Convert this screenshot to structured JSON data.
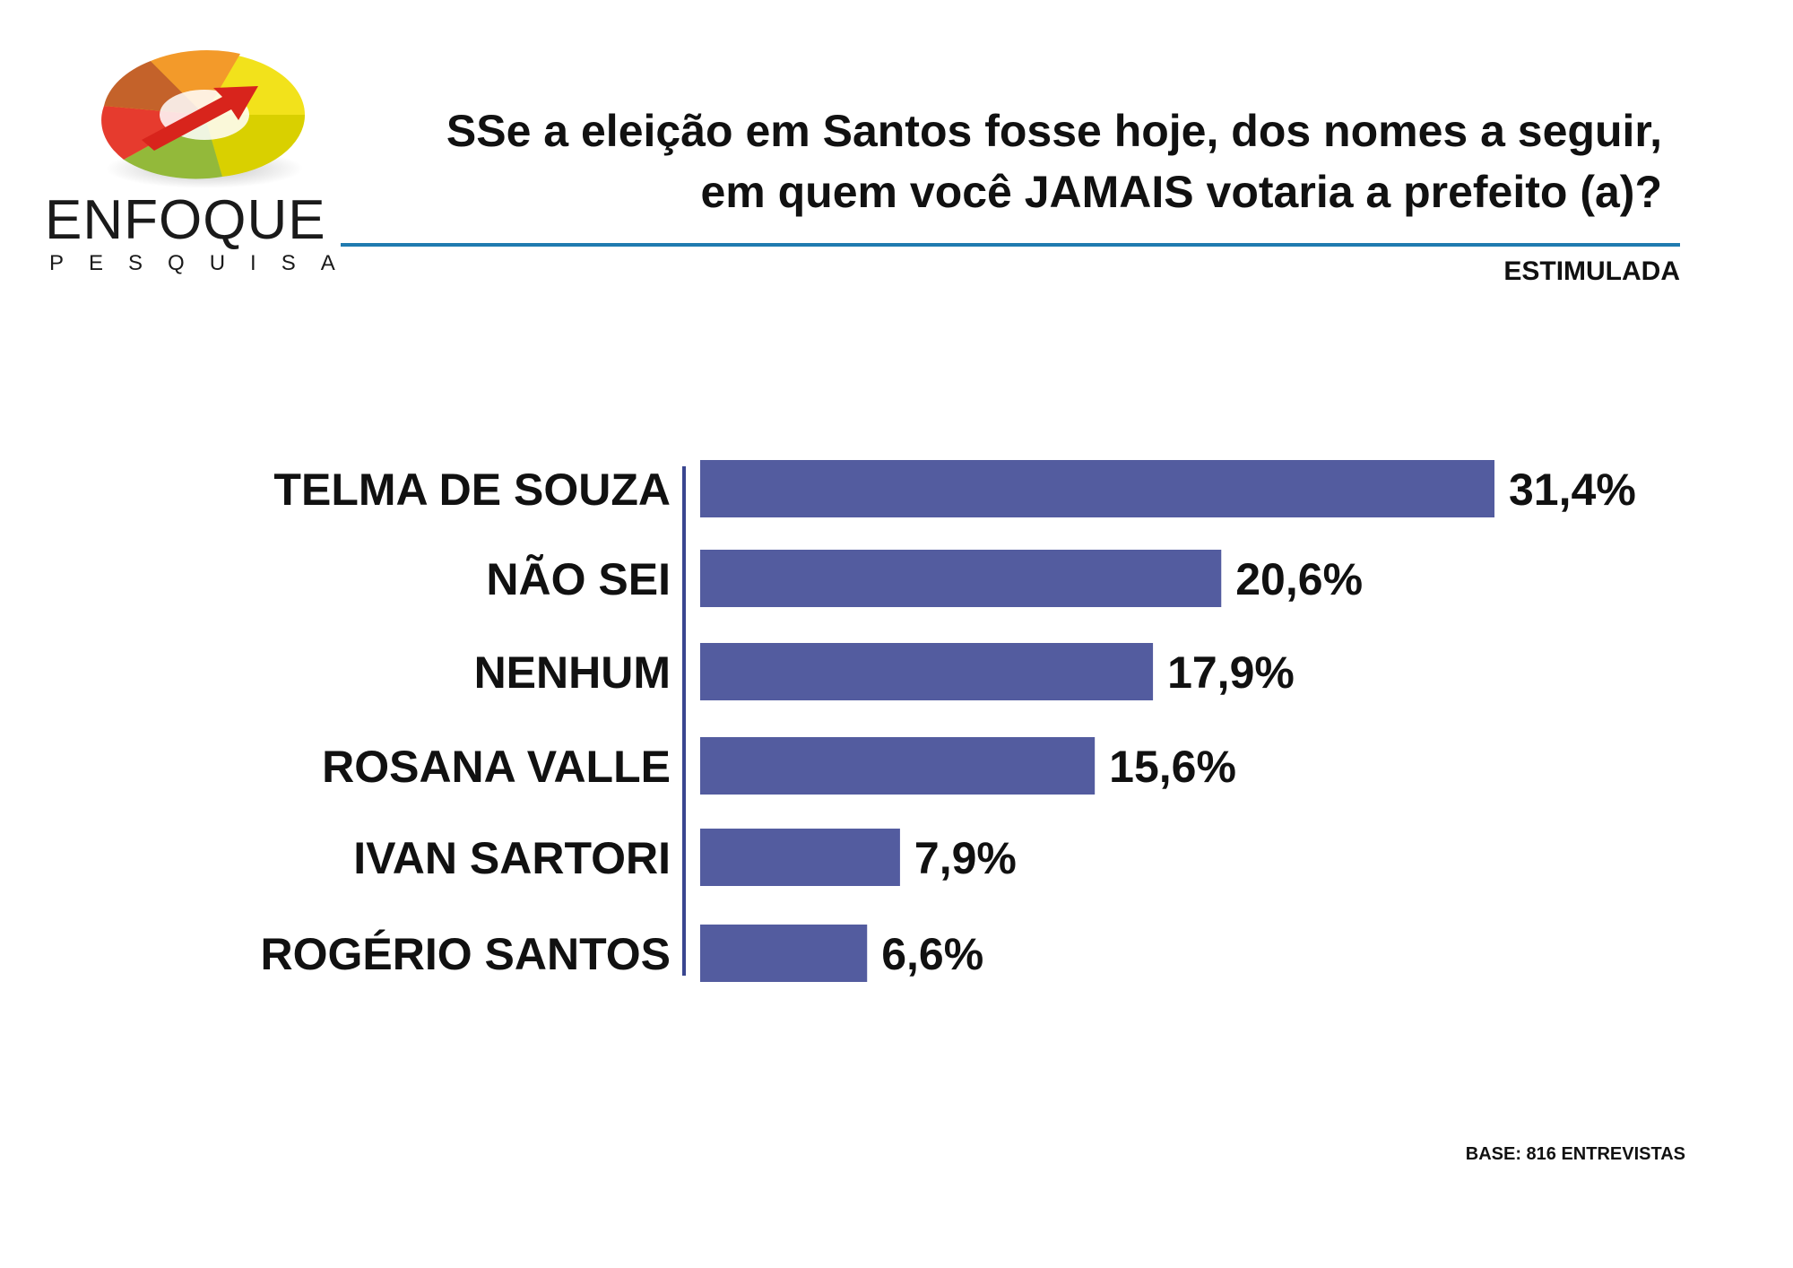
{
  "header": {
    "title_line1": "SSe a eleição em Santos fosse hoje, dos nomes a seguir,",
    "title_line2": "em quem você JAMAIS votaria a prefeito (a)?",
    "tag": "ESTIMULADA"
  },
  "logo": {
    "name": "ENFOQUE",
    "subtitle": "PESQUISA",
    "icon": "multicolor-3d-ring-arrow-logo"
  },
  "footer": {
    "base": "BASE: 816 ENTREVISTAS"
  },
  "colors": {
    "bar": "#535c9f",
    "axis": "#3a4690",
    "rule": "#1f7bb0",
    "text": "#111111"
  },
  "chart_data": {
    "type": "bar",
    "orientation": "horizontal",
    "categories": [
      "TELMA DE SOUZA",
      "NÃO SEI",
      "NENHUM",
      "ROSANA VALLE",
      "IVAN SARTORI",
      "ROGÉRIO SANTOS"
    ],
    "values": [
      31.4,
      20.6,
      17.9,
      15.6,
      7.9,
      6.6
    ],
    "value_labels": [
      "31,4%",
      "20,6%",
      "17,9%",
      "15,6%",
      "7,9%",
      "6,6%"
    ],
    "unit": "%",
    "title": "SSe a eleição em Santos fosse hoje, dos nomes a seguir, em quem você JAMAIS votaria a prefeito (a)?",
    "xlabel": "",
    "ylabel": "",
    "grid": false,
    "legend": "none"
  }
}
